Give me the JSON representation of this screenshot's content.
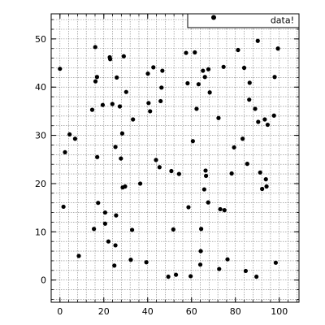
{
  "chart_data": {
    "type": "scatter",
    "title": "",
    "xlabel": "",
    "ylabel": "",
    "xlim": [
      -4,
      109
    ],
    "ylim": [
      -4.6,
      55.2
    ],
    "xticks": [
      0,
      20,
      40,
      60,
      80,
      100
    ],
    "yticks": [
      0,
      10,
      20,
      30,
      40,
      50
    ],
    "grid": true,
    "legend_position": "top-right",
    "marker_color": "#000000",
    "series": [
      {
        "name": "data!",
        "points": [
          [
            0,
            43.8
          ],
          [
            1.6,
            15.2
          ],
          [
            2.3,
            26.5
          ],
          [
            4.4,
            30.2
          ],
          [
            6.9,
            29.3
          ],
          [
            8.6,
            5.0
          ],
          [
            14.7,
            35.3
          ],
          [
            15.5,
            10.6
          ],
          [
            16.1,
            48.3
          ],
          [
            16.2,
            41.2
          ],
          [
            16.9,
            42.1
          ],
          [
            17.0,
            25.5
          ],
          [
            17.4,
            16.0
          ],
          [
            19.5,
            36.3
          ],
          [
            20.6,
            14.0
          ],
          [
            20.6,
            11.7
          ],
          [
            22.1,
            8.0
          ],
          [
            22.7,
            46.2
          ],
          [
            22.9,
            45.8
          ],
          [
            23.9,
            36.5
          ],
          [
            24.8,
            3.0
          ],
          [
            25.3,
            7.2
          ],
          [
            25.3,
            27.6
          ],
          [
            25.6,
            13.4
          ],
          [
            25.9,
            42.0
          ],
          [
            27.3,
            36.0
          ],
          [
            27.8,
            25.2
          ],
          [
            28.4,
            30.4
          ],
          [
            28.6,
            19.2
          ],
          [
            29.1,
            46.4
          ],
          [
            29.7,
            19.4
          ],
          [
            30.2,
            39.0
          ],
          [
            32.3,
            4.2
          ],
          [
            32.9,
            10.4
          ],
          [
            33.3,
            33.3
          ],
          [
            36.6,
            20.0
          ],
          [
            39.4,
            3.7
          ],
          [
            40.1,
            42.8
          ],
          [
            40.4,
            36.7
          ],
          [
            41.1,
            35.0
          ],
          [
            42.6,
            44.1
          ],
          [
            43.8,
            24.9
          ],
          [
            45.4,
            23.4
          ],
          [
            45.9,
            37.1
          ],
          [
            46.3,
            39.9
          ],
          [
            46.7,
            43.4
          ],
          [
            49.4,
            0.7
          ],
          [
            50.8,
            22.6
          ],
          [
            51.7,
            10.5
          ],
          [
            52.9,
            1.1
          ],
          [
            54.3,
            22.0
          ],
          [
            57.5,
            47.1
          ],
          [
            58.2,
            40.8
          ],
          [
            58.6,
            15.1
          ],
          [
            59.6,
            0.8
          ],
          [
            60.6,
            28.8
          ],
          [
            61.5,
            47.2
          ],
          [
            62.3,
            35.5
          ],
          [
            63.2,
            40.6
          ],
          [
            64.0,
            3.2
          ],
          [
            64.2,
            6.0
          ],
          [
            64.4,
            10.6
          ],
          [
            65.2,
            43.4
          ],
          [
            65.8,
            18.8
          ],
          [
            66.1,
            42.1
          ],
          [
            66.4,
            22.7
          ],
          [
            66.6,
            21.6
          ],
          [
            67.6,
            16.1
          ],
          [
            67.7,
            43.7
          ],
          [
            68.3,
            38.9
          ],
          [
            72.3,
            33.6
          ],
          [
            72.6,
            2.3
          ],
          [
            73.0,
            53.0
          ],
          [
            73.1,
            14.7
          ],
          [
            74.6,
            44.2
          ],
          [
            75.0,
            14.5
          ],
          [
            76.4,
            4.3
          ],
          [
            78.3,
            22.1
          ],
          [
            79.4,
            27.5
          ],
          [
            81.2,
            47.7
          ],
          [
            83.3,
            29.3
          ],
          [
            84.0,
            44.0
          ],
          [
            84.7,
            1.9
          ],
          [
            85.4,
            24.1
          ],
          [
            86.3,
            37.4
          ],
          [
            86.5,
            40.9
          ],
          [
            89.0,
            35.5
          ],
          [
            89.6,
            0.7
          ],
          [
            90.2,
            49.6
          ],
          [
            90.4,
            32.8
          ],
          [
            91.3,
            22.3
          ],
          [
            92.2,
            18.9
          ],
          [
            93.4,
            33.3
          ],
          [
            93.9,
            20.9
          ],
          [
            94.2,
            19.4
          ],
          [
            94.7,
            32.2
          ],
          [
            97.6,
            34.1
          ],
          [
            97.9,
            42.1
          ],
          [
            98.4,
            3.6
          ],
          [
            99.4,
            48.0
          ]
        ]
      }
    ]
  }
}
